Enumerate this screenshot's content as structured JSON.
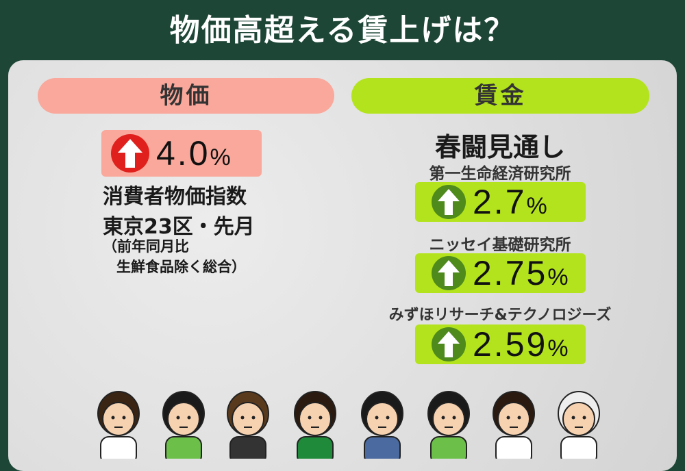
{
  "title": "物価高超える賃上げは？",
  "left": {
    "header": "物価",
    "value": "4.0",
    "unit": "%",
    "direction": "up",
    "label1": "消費者物価指数",
    "label2": "東京23区・先月",
    "note1": "（前年同月比",
    "note2": "生鮮食品除く総合）"
  },
  "right": {
    "header": "賃金",
    "subtitle": "春闘見通し",
    "forecasts": [
      {
        "source": "第一生命経済研究所",
        "value": "2.7",
        "unit": "%",
        "direction": "up"
      },
      {
        "source": "ニッセイ基礎研究所",
        "value": "2.75",
        "unit": "%",
        "direction": "up"
      },
      {
        "source": "みずほリサーチ&テクノロジーズ",
        "value": "2.59",
        "unit": "%",
        "direction": "up"
      }
    ]
  },
  "colors": {
    "background": "#1e4637",
    "pink": "#f9a89b",
    "green": "#b3e31c",
    "red_arrow": "#e0201c",
    "green_arrow": "#4e8a1c"
  }
}
